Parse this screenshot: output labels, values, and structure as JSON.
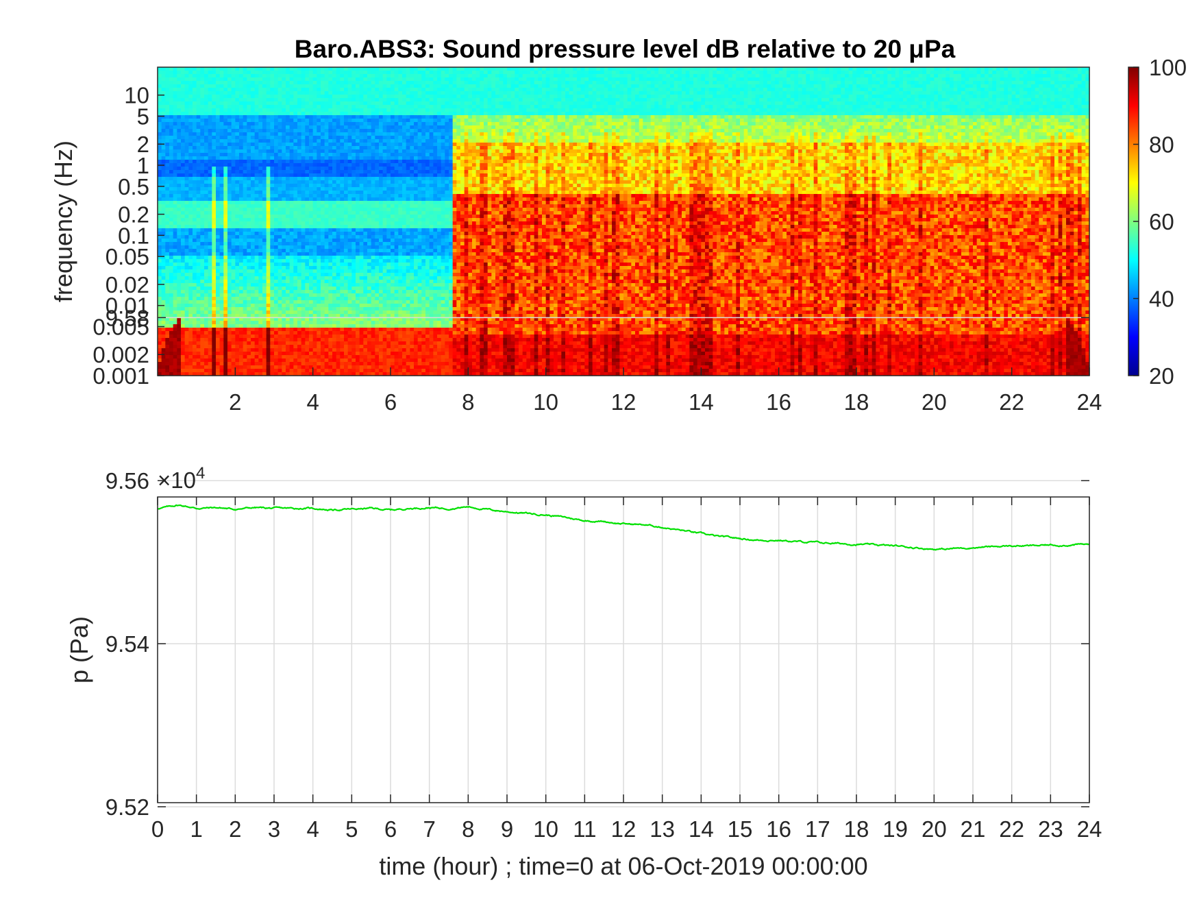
{
  "colors": {
    "pressure_line": "#00e000",
    "colormap": "jet"
  },
  "chart_data": [
    {
      "type": "heatmap",
      "title": "Baro.ABS3: Sound pressure level dB relative to 20 μPa",
      "xlabel": "",
      "ylabel": "frequency (Hz)",
      "y_scale": "log",
      "xlim": [
        0,
        24
      ],
      "ylim": [
        0.001,
        25
      ],
      "x_ticks": [
        "2",
        "4",
        "6",
        "8",
        "10",
        "12",
        "14",
        "16",
        "18",
        "20",
        "22",
        "24"
      ],
      "y_ticks": [
        "10",
        "5",
        "2",
        "1",
        "0.5",
        "0.2",
        "0.1",
        "0.05",
        "0.02",
        "0.01",
        "0.005",
        "0.002",
        "0.001"
      ],
      "colorbar": {
        "range": [
          20,
          100
        ],
        "ticks": [
          "100",
          "80",
          "60",
          "40",
          "20"
        ],
        "colormap": "jet"
      },
      "segments": [
        {
          "x_range": [
            0,
            7.6
          ],
          "description_free_levels_db": {
            "above_5Hz": 52,
            "0.1_to_5Hz": 42,
            "0.005_to_0.1Hz": 55,
            "below_0.005Hz": 88
          }
        },
        {
          "x_range": [
            7.6,
            24
          ],
          "description_free_levels_db": {
            "above_5Hz": 52,
            "0.5_to_5Hz": 68,
            "0.005_to_0.5Hz": 84,
            "below_0.005Hz": 92
          }
        }
      ]
    },
    {
      "type": "line",
      "title": "",
      "xlabel": "time (hour) ; time=0 at 06-Oct-2019 00:00:00",
      "ylabel": "p (Pa)",
      "y_exponent_label": "×10",
      "y_exponent_power": "4",
      "xlim": [
        0,
        24
      ],
      "ylim": [
        95.205,
        95.58
      ],
      "grid": true,
      "x_ticks": [
        "0",
        "1",
        "2",
        "3",
        "4",
        "5",
        "6",
        "7",
        "8",
        "9",
        "10",
        "11",
        "12",
        "13",
        "14",
        "15",
        "16",
        "17",
        "18",
        "19",
        "20",
        "21",
        "22",
        "23",
        "24"
      ],
      "y_ticks": [
        "9.58",
        "9.56",
        "9.54",
        "9.52"
      ],
      "series": [
        {
          "x": [
            0,
            0.3,
            0.5,
            0.7,
            1.0,
            1.5,
            2.0,
            2.5,
            3.0,
            3.5,
            4.0,
            4.5,
            5.0,
            5.5,
            6.0,
            6.5,
            7.0,
            7.5,
            8.0,
            8.3,
            8.6,
            9.0,
            9.5,
            10.0,
            10.5,
            11.0,
            11.5,
            12.0,
            12.5,
            13.0,
            13.5,
            14.0,
            14.5,
            15.0,
            15.5,
            16.0,
            16.5,
            17.0,
            17.5,
            18.0,
            18.5,
            19.0,
            19.5,
            20.0,
            20.3,
            20.6,
            21.0,
            21.5,
            22.0,
            22.5,
            23.0,
            23.5,
            24.0
          ],
          "y": [
            95.566,
            95.568,
            95.57,
            95.569,
            95.566,
            95.567,
            95.565,
            95.567,
            95.566,
            95.566,
            95.566,
            95.564,
            95.565,
            95.566,
            95.564,
            95.566,
            95.567,
            95.566,
            95.568,
            95.566,
            95.564,
            95.562,
            95.56,
            95.558,
            95.555,
            95.551,
            95.55,
            95.547,
            95.546,
            95.543,
            95.539,
            95.535,
            95.531,
            95.529,
            95.527,
            95.527,
            95.525,
            95.524,
            95.523,
            95.522,
            95.521,
            95.52,
            95.518,
            95.516,
            95.516,
            95.517,
            95.518,
            95.519,
            95.52,
            95.52,
            95.521,
            95.521,
            95.522
          ]
        }
      ]
    }
  ]
}
